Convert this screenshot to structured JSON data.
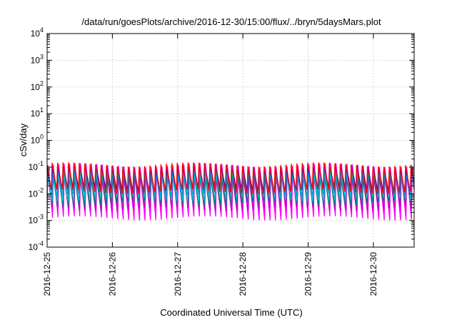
{
  "chart_data": {
    "type": "line",
    "title": "/data/run/goesPlots/archive/2016-12-30/15:00/flux/../bryn/5daysMars.plot",
    "xlabel": "Coordinated Universal Time (UTC)",
    "ylabel": "cSv/day",
    "yscale": "log",
    "ylim": [
      0.0001,
      10000
    ],
    "xlim": [
      "2016-12-25",
      "2016-12-30 15:00"
    ],
    "grid": true,
    "x_ticks": [
      "2016-12-25",
      "2016-12-26",
      "2016-12-27",
      "2016-12-28",
      "2016-12-29",
      "2016-12-30"
    ],
    "y_ticks": [
      {
        "base": "10",
        "exp": "-4",
        "value": 0.0001
      },
      {
        "base": "10",
        "exp": "-3",
        "value": 0.001
      },
      {
        "base": "10",
        "exp": "-2",
        "value": 0.01
      },
      {
        "base": "10",
        "exp": "-1",
        "value": 0.1
      },
      {
        "base": "10",
        "exp": "0",
        "value": 1
      },
      {
        "base": "10",
        "exp": "1",
        "value": 10
      },
      {
        "base": "10",
        "exp": "2",
        "value": 100
      },
      {
        "base": "10",
        "exp": "3",
        "value": 1000
      },
      {
        "base": "10",
        "exp": "4",
        "value": 10000
      }
    ],
    "period_hours": 2,
    "series": [
      {
        "color": "#ff00ff",
        "peak": 0.12,
        "trough": 0.0012
      },
      {
        "color": "#ff00ff",
        "peak": 0.07,
        "trough": 0.0018
      },
      {
        "color": "#c000c0",
        "peak": 0.05,
        "trough": 0.0025
      },
      {
        "color": "#008080",
        "peak": 0.06,
        "trough": 0.004
      },
      {
        "color": "#00c0c0",
        "peak": 0.07,
        "trough": 0.006
      },
      {
        "color": "#00a0e0",
        "peak": 0.08,
        "trough": 0.009
      },
      {
        "color": "#0000ff",
        "peak": 0.11,
        "trough": 0.013
      },
      {
        "color": "#ff0000",
        "peak": 0.13,
        "trough": 0.011
      }
    ]
  }
}
